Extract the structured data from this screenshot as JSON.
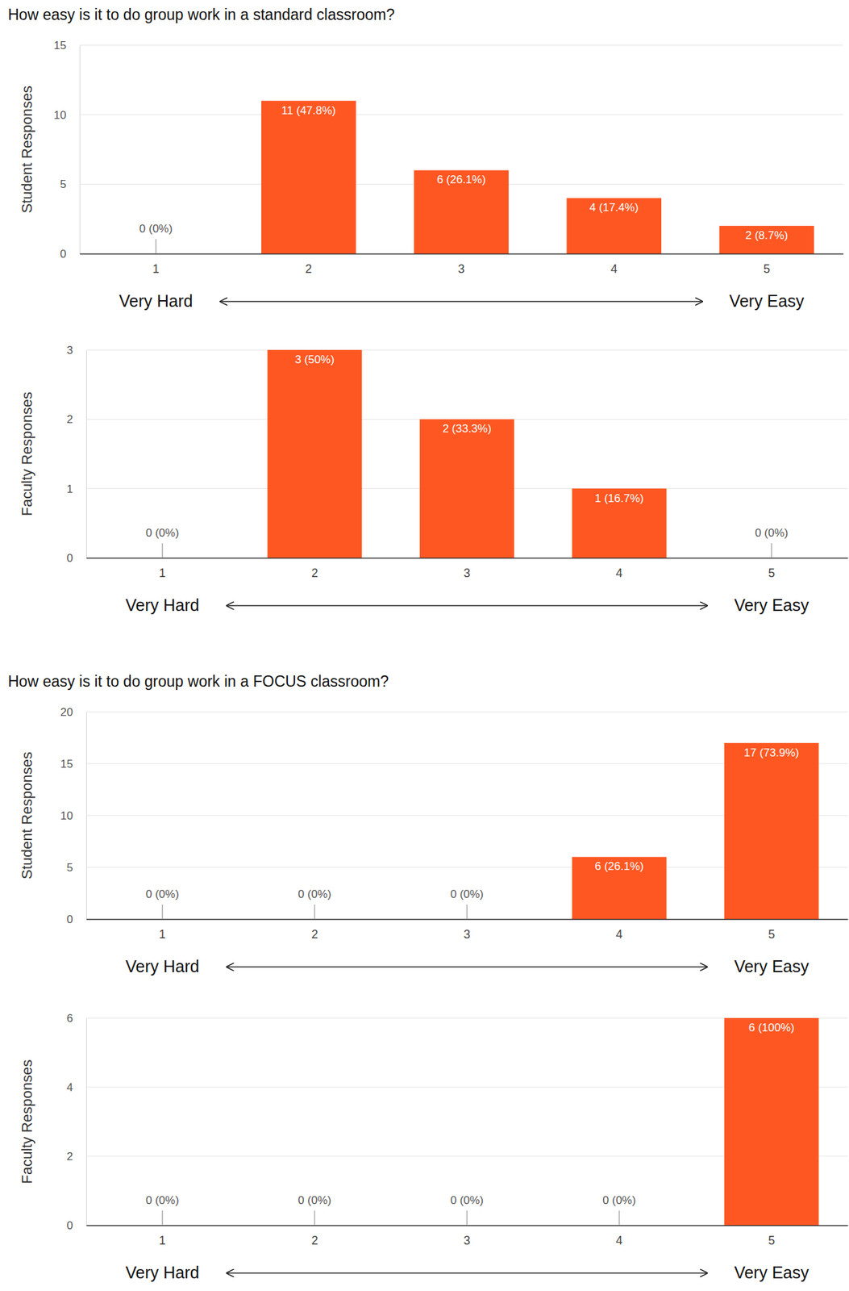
{
  "chart_data": [
    {
      "type": "bar",
      "title": "How easy is it to do group work in a standard classroom?",
      "y_label": "Student Responses",
      "annotations": [
        "Very Hard",
        "Very Easy"
      ],
      "categories": [
        "1",
        "2",
        "3",
        "4",
        "5"
      ],
      "values": [
        0,
        11,
        6,
        4,
        2
      ],
      "value_labels": [
        "0 (0%)",
        "11 (47.8%)",
        "6 (26.1%)",
        "4 (17.4%)",
        "2 (8.7%)"
      ],
      "color": "#fe5722",
      "ylim": [
        0,
        15
      ],
      "yticks": [
        0,
        5,
        10,
        15
      ],
      "grid": true,
      "data_labels": true
    },
    {
      "type": "bar",
      "y_label": "Faculty Responses",
      "annotations": [
        "Very Hard",
        "Very Easy"
      ],
      "categories": [
        "1",
        "2",
        "3",
        "4",
        "5"
      ],
      "values": [
        0,
        3,
        2,
        1,
        0
      ],
      "value_labels": [
        "0 (0%)",
        "3 (50%)",
        "2 (33.3%)",
        "1 (16.7%)",
        "0 (0%)"
      ],
      "color": "#fe5722",
      "ylim": [
        0,
        3
      ],
      "yticks": [
        0,
        1,
        2,
        3
      ],
      "grid": true,
      "data_labels": true
    },
    {
      "type": "bar",
      "title": "How easy is it to do group work in a FOCUS classroom?",
      "y_label": "Student Responses",
      "annotations": [
        "Very Hard",
        "Very Easy"
      ],
      "categories": [
        "1",
        "2",
        "3",
        "4",
        "5"
      ],
      "values": [
        0,
        0,
        0,
        6,
        17
      ],
      "value_labels": [
        "0 (0%)",
        "0 (0%)",
        "0 (0%)",
        "6 (26.1%)",
        "17 (73.9%)"
      ],
      "color": "#fe5722",
      "ylim": [
        0,
        20
      ],
      "yticks": [
        0,
        5,
        10,
        15,
        20
      ],
      "grid": true,
      "data_labels": true
    },
    {
      "type": "bar",
      "y_label": "Faculty Responses",
      "annotations": [
        "Very Hard",
        "Very Easy"
      ],
      "categories": [
        "1",
        "2",
        "3",
        "4",
        "5"
      ],
      "values": [
        0,
        0,
        0,
        0,
        6
      ],
      "value_labels": [
        "0 (0%)",
        "0 (0%)",
        "0 (0%)",
        "0 (0%)",
        "6 (100%)"
      ],
      "color": "#fe5722",
      "ylim": [
        0,
        6
      ],
      "yticks": [
        0,
        2,
        4,
        6
      ],
      "grid": true,
      "data_labels": true
    }
  ]
}
